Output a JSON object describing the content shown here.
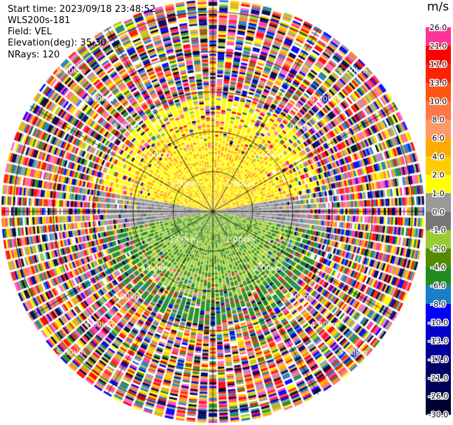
{
  "info": {
    "start_time": "Start time: 2023/09/18 23:48:52",
    "station": "WLS200s-181",
    "field": "Field: VEL",
    "elevation": "Elevation(deg): 35.30",
    "nrays": "NRays: 120"
  },
  "colorbar": {
    "unit": "m/s",
    "ticks": [
      "26.0",
      "21.0",
      "17.0",
      "13.0",
      "10.0",
      "8.0",
      "6.0",
      "4.0",
      "2.0",
      "1.0",
      "0.0",
      "-1.0",
      "-2.0",
      "-4.0",
      "-6.0",
      "-8.0",
      "-10.0",
      "-13.0",
      "-17.0",
      "-21.0",
      "-26.0",
      "-30.0"
    ],
    "colors": [
      "#ff3399",
      "#ff0000",
      "#ff2200",
      "#ff5511",
      "#ff7744",
      "#ff9966",
      "#ffaa00",
      "#ffcc00",
      "#ffff00",
      "#999999",
      "#777777",
      "#99cc33",
      "#558b00",
      "#228b22",
      "#1a7fc8",
      "#0000ff",
      "#0000cc",
      "#000099",
      "#000066",
      "#000055",
      "#000033"
    ]
  },
  "chart_data": {
    "type": "ppi",
    "field": "VEL",
    "nrays": 120,
    "range_rings_km": [
      1,
      2,
      3,
      4,
      5
    ],
    "ring_labels": [
      "1.00km",
      "2.00km",
      "3.00km",
      "4.00km",
      "5.00km"
    ],
    "azimuth_spokes_deg": [
      0,
      30,
      60,
      90,
      120,
      150,
      180,
      210,
      240,
      270,
      300,
      330
    ],
    "max_range_km": 5.3,
    "near_field_pattern": {
      "north_half": "positive velocities 2.0 to 6.0 m/s (yellow/orange)",
      "east_west_band": "near zero velocities (grey)",
      "south_half": "negative velocities -2.0 to -6.0 m/s (green)",
      "outer_ranges": "noisy values spanning -30.0 to 26.0 m/s"
    }
  }
}
